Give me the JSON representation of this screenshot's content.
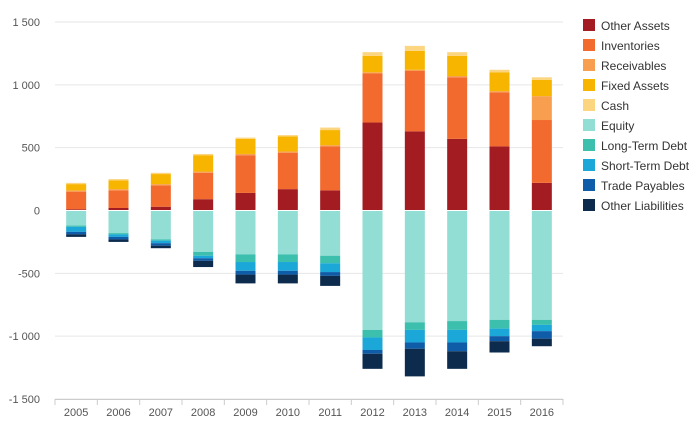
{
  "chart_data": {
    "type": "bar",
    "stacked": true,
    "categories": [
      "2005",
      "2006",
      "2007",
      "2008",
      "2009",
      "2010",
      "2011",
      "2012",
      "2013",
      "2014",
      "2015",
      "2016"
    ],
    "ylim": [
      -1500,
      1500
    ],
    "yticks": [
      -1500,
      -1000,
      -500,
      0,
      500,
      1000,
      1500
    ],
    "ytick_labels": [
      "-1 500",
      "-1 000",
      "-500",
      "0",
      "500",
      "1 000",
      "1 500"
    ],
    "grid": true,
    "legend_position": "right",
    "series": [
      {
        "name": "Other Assets",
        "color": "#a31c22",
        "values": [
          10,
          20,
          30,
          90,
          140,
          170,
          160,
          700,
          630,
          570,
          510,
          220
        ]
      },
      {
        "name": "Inventories",
        "color": "#f26a2e",
        "values": [
          140,
          140,
          170,
          210,
          300,
          290,
          350,
          390,
          480,
          490,
          430,
          500
        ]
      },
      {
        "name": "Receivables",
        "color": "#f79f4f",
        "values": [
          10,
          10,
          10,
          10,
          10,
          10,
          10,
          10,
          10,
          10,
          10,
          190
        ]
      },
      {
        "name": "Fixed Assets",
        "color": "#f7b500",
        "values": [
          50,
          70,
          80,
          130,
          120,
          120,
          120,
          130,
          150,
          160,
          150,
          130
        ]
      },
      {
        "name": "Cash",
        "color": "#fcd581",
        "values": [
          10,
          10,
          10,
          10,
          10,
          10,
          20,
          30,
          40,
          30,
          20,
          20
        ]
      },
      {
        "name": "Equity",
        "color": "#92ddd4",
        "values": [
          -120,
          -180,
          -230,
          -330,
          -350,
          -350,
          -360,
          -950,
          -890,
          -880,
          -870,
          -870
        ]
      },
      {
        "name": "Long-Term Debt",
        "color": "#3cbfad",
        "values": [
          -10,
          -10,
          -10,
          -30,
          -60,
          -60,
          -60,
          -60,
          -60,
          -70,
          -70,
          -40
        ]
      },
      {
        "name": "Short-Term Debt",
        "color": "#1ba8d8",
        "values": [
          -40,
          -20,
          -20,
          -20,
          -70,
          -70,
          -70,
          -100,
          -100,
          -100,
          -60,
          -50
        ]
      },
      {
        "name": "Trade Payables",
        "color": "#0f5ca8",
        "values": [
          -20,
          -20,
          -20,
          -20,
          -30,
          -30,
          -30,
          -30,
          -50,
          -70,
          -40,
          -60
        ]
      },
      {
        "name": "Other Liabilities",
        "color": "#0d2b4d",
        "values": [
          -20,
          -20,
          -20,
          -50,
          -70,
          -70,
          -80,
          -120,
          -220,
          -140,
          -90,
          -60
        ]
      }
    ]
  }
}
